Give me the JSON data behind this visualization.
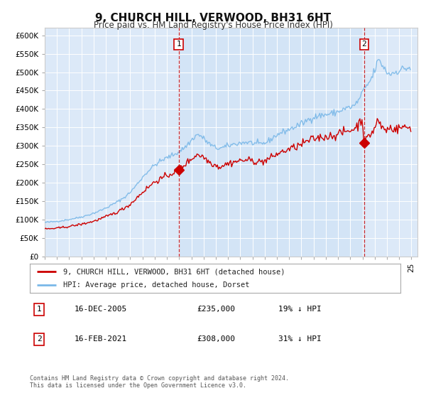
{
  "title": "9, CHURCH HILL, VERWOOD, BH31 6HT",
  "subtitle": "Price paid vs. HM Land Registry's House Price Index (HPI)",
  "plot_bg_color": "#dce9f8",
  "plot_bg_color2": "#cce0f5",
  "fig_bg_color": "#ffffff",
  "hpi_color": "#7ab8e8",
  "price_color": "#cc0000",
  "marker1_year": 2005.958,
  "marker1_price": 235000,
  "marker2_year": 2021.125,
  "marker2_price": 308000,
  "legend_label1": "9, CHURCH HILL, VERWOOD, BH31 6HT (detached house)",
  "legend_label2": "HPI: Average price, detached house, Dorset",
  "table_row1": [
    "1",
    "16-DEC-2005",
    "£235,000",
    "19% ↓ HPI"
  ],
  "table_row2": [
    "2",
    "16-FEB-2021",
    "£308,000",
    "31% ↓ HPI"
  ],
  "footer": "Contains HM Land Registry data © Crown copyright and database right 2024.\nThis data is licensed under the Open Government Licence v3.0.",
  "xmin": 1995.0,
  "xmax": 2025.5
}
